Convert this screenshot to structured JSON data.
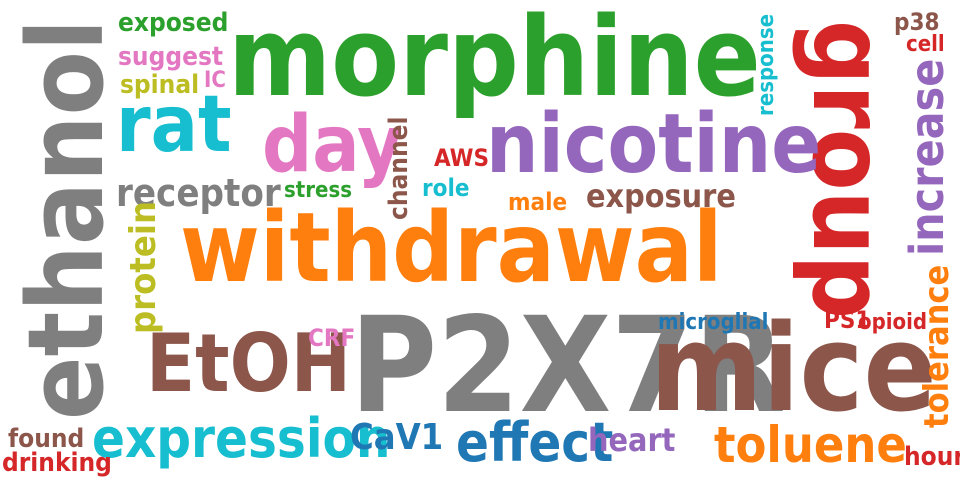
{
  "word_cloud": {
    "words": [
      {
        "key": "withdrawal",
        "text": "withdrawal",
        "color": "#ff7f0e"
      },
      {
        "key": "P2X7R",
        "text": "P2X7R",
        "color": "#7f7f7f"
      },
      {
        "key": "morphine",
        "text": "morphine",
        "color": "#2ca02c"
      },
      {
        "key": "ethanol",
        "text": "ethanol",
        "color": "#7f7f7f"
      },
      {
        "key": "mice",
        "text": "mice",
        "color": "#8c564b"
      },
      {
        "key": "group",
        "text": "group",
        "color": "#d62728"
      },
      {
        "key": "nicotine",
        "text": "nicotine",
        "color": "#9467bd"
      },
      {
        "key": "day",
        "text": "day",
        "color": "#e377c2"
      },
      {
        "key": "rat",
        "text": "rat",
        "color": "#17becf"
      },
      {
        "key": "EtOH",
        "text": "EtOH",
        "color": "#8c564b"
      },
      {
        "key": "expression",
        "text": "expression",
        "color": "#17becf"
      },
      {
        "key": "effect",
        "text": "effect",
        "color": "#1f77b4"
      },
      {
        "key": "increase",
        "text": "increase",
        "color": "#9467bd"
      },
      {
        "key": "toluene",
        "text": "toluene",
        "color": "#ff7f0e"
      },
      {
        "key": "receptor",
        "text": "receptor",
        "color": "#7f7f7f"
      },
      {
        "key": "exposure",
        "text": "exposure",
        "color": "#8c564b"
      },
      {
        "key": "protein",
        "text": "protein",
        "color": "#bcbd22"
      },
      {
        "key": "tolerance",
        "text": "tolerance",
        "color": "#ff7f0e"
      },
      {
        "key": "CaV1",
        "text": "CaV1",
        "color": "#1f77b4"
      },
      {
        "key": "heart",
        "text": "heart",
        "color": "#9467bd"
      },
      {
        "key": "channel",
        "text": "channel",
        "color": "#8c564b"
      },
      {
        "key": "exposed",
        "text": "exposed",
        "color": "#2ca02c"
      },
      {
        "key": "suggest",
        "text": "suggest",
        "color": "#e377c2"
      },
      {
        "key": "spinal",
        "text": "spinal",
        "color": "#bcbd22"
      },
      {
        "key": "IC",
        "text": "IC",
        "color": "#e377c2"
      },
      {
        "key": "response",
        "text": "response",
        "color": "#17becf"
      },
      {
        "key": "p38",
        "text": "p38",
        "color": "#8c564b"
      },
      {
        "key": "cell",
        "text": "cell",
        "color": "#d62728"
      },
      {
        "key": "AWS",
        "text": "AWS",
        "color": "#d62728"
      },
      {
        "key": "stress",
        "text": "stress",
        "color": "#2ca02c"
      },
      {
        "key": "role",
        "text": "role",
        "color": "#17becf"
      },
      {
        "key": "male",
        "text": "male",
        "color": "#ff7f0e"
      },
      {
        "key": "microglial",
        "text": "microglial",
        "color": "#1f77b4"
      },
      {
        "key": "CRF",
        "text": "CRF",
        "color": "#e377c2"
      },
      {
        "key": "PS1",
        "text": "PS1",
        "color": "#d62728"
      },
      {
        "key": "opioid",
        "text": "opioid",
        "color": "#d62728"
      },
      {
        "key": "found",
        "text": "found",
        "color": "#8c564b"
      },
      {
        "key": "drinking",
        "text": "drinking",
        "color": "#d62728"
      },
      {
        "key": "hour",
        "text": "hour",
        "color": "#d62728"
      }
    ]
  }
}
